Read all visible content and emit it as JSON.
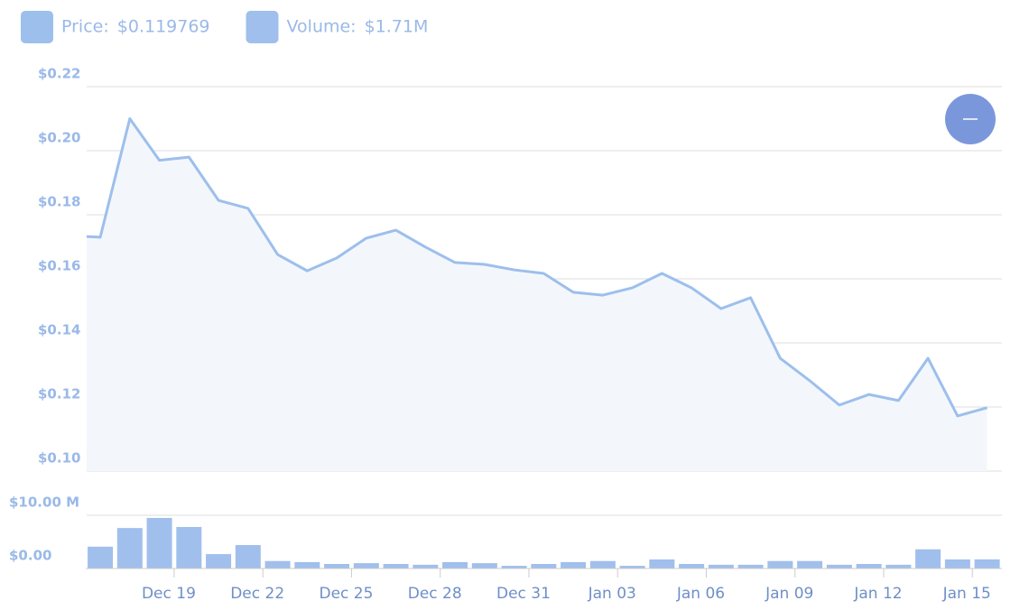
{
  "chart_data": [
    {
      "type": "line",
      "x": [
        -0.46,
        0,
        1,
        2,
        3,
        4,
        5,
        6,
        7,
        8,
        9,
        10,
        11,
        12,
        13,
        14,
        15,
        16,
        17,
        18,
        19,
        20,
        21,
        22,
        23,
        24,
        25,
        26,
        27,
        28,
        29,
        30
      ],
      "series": [
        {
          "name": "Price:",
          "color": "#9dbfec",
          "legend_value": "$0.119769",
          "values": [
            0.1732,
            0.173,
            0.21,
            0.197,
            0.198,
            0.1845,
            0.182,
            0.1676,
            0.1625,
            0.1665,
            0.1727,
            0.1752,
            0.1699,
            0.1651,
            0.1645,
            0.1628,
            0.1617,
            0.1558,
            0.1549,
            0.1572,
            0.1617,
            0.1572,
            0.1507,
            0.1541,
            0.1352,
            0.1282,
            0.1206,
            0.1239,
            0.122,
            0.1352,
            0.1172,
            0.119769
          ]
        }
      ],
      "xlim": [
        -0.46,
        30.5
      ],
      "ylim": [
        0.1,
        0.22
      ],
      "yticks": [
        {
          "value": 0.1,
          "label": "$0.10"
        },
        {
          "value": 0.12,
          "label": "$0.12"
        },
        {
          "value": 0.14,
          "label": "$0.14"
        },
        {
          "value": 0.16,
          "label": "$0.16"
        },
        {
          "value": 0.18,
          "label": "$0.18"
        },
        {
          "value": 0.2,
          "label": "$0.20"
        },
        {
          "value": 0.22,
          "label": "$0.22"
        }
      ],
      "grid": true
    },
    {
      "type": "bar",
      "x": [
        0,
        1,
        2,
        3,
        4,
        5,
        6,
        7,
        8,
        9,
        10,
        11,
        12,
        13,
        14,
        15,
        16,
        17,
        18,
        19,
        20,
        21,
        22,
        23,
        24,
        25,
        26,
        27,
        28,
        29,
        30
      ],
      "series": [
        {
          "name": "Volume:",
          "color": "#a0bfec",
          "legend_value": "$1.71M",
          "values": [
            4.1,
            7.6,
            9.5,
            7.8,
            2.7,
            4.4,
            1.4,
            1.2,
            0.85,
            1.0,
            0.85,
            0.7,
            1.2,
            1.0,
            0.5,
            0.85,
            1.2,
            1.4,
            0.5,
            1.7,
            0.85,
            0.7,
            0.7,
            1.4,
            1.4,
            0.7,
            0.85,
            0.7,
            3.6,
            1.7,
            1.71
          ]
        }
      ],
      "xlim": [
        -0.46,
        30.5
      ],
      "xticks": [
        {
          "value": 2.5,
          "label": "Dec 19"
        },
        {
          "value": 5.5,
          "label": "Dec 22"
        },
        {
          "value": 8.5,
          "label": "Dec 25"
        },
        {
          "value": 11.5,
          "label": "Dec 28"
        },
        {
          "value": 14.5,
          "label": "Dec 31"
        },
        {
          "value": 17.5,
          "label": "Jan 03"
        },
        {
          "value": 20.5,
          "label": "Jan 06"
        },
        {
          "value": 23.5,
          "label": "Jan 09"
        },
        {
          "value": 26.5,
          "label": "Jan 12"
        },
        {
          "value": 29.5,
          "label": "Jan 15"
        }
      ],
      "ylim": [
        0,
        10
      ],
      "yticks": [
        {
          "value": 0,
          "label": "$0.00"
        },
        {
          "value": 10,
          "label": "$10.00 M"
        }
      ],
      "grid": true
    }
  ]
}
